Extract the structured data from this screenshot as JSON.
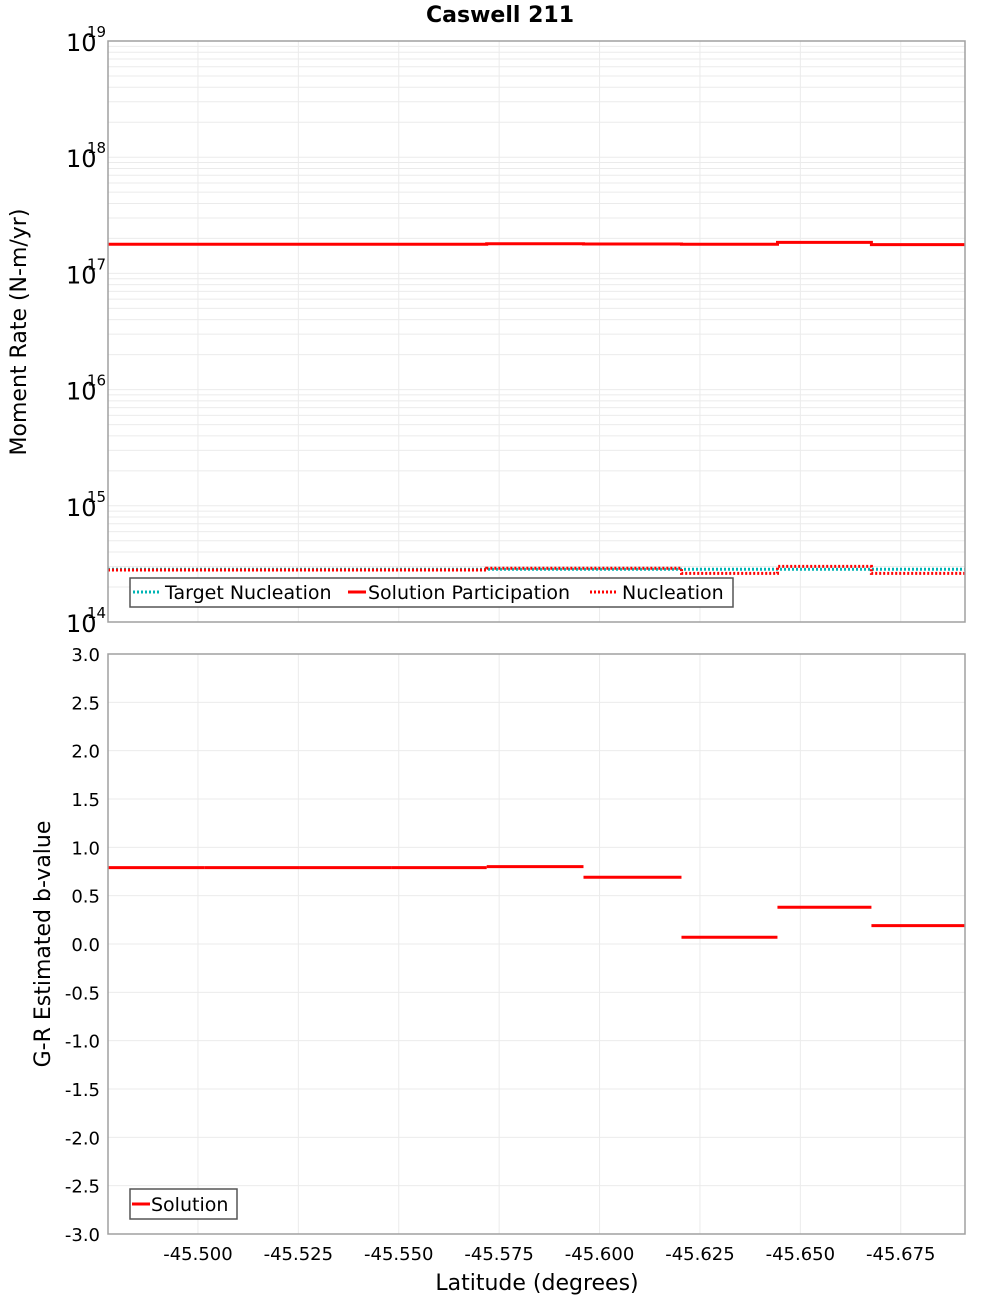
{
  "chart_data": [
    {
      "type": "line",
      "subtype": "step",
      "title": "Caswell 211",
      "xlabel": "Latitude (degrees)",
      "ylabel": "Moment Rate (N-m/yr)",
      "yscale": "log",
      "ylim": [
        100000000000000.0,
        1e+19
      ],
      "xlim": [
        -45.4776,
        -45.691
      ],
      "y_tick_labels": [
        {
          "base": "10",
          "exp": "14"
        },
        {
          "base": "10",
          "exp": "15"
        },
        {
          "base": "10",
          "exp": "16"
        },
        {
          "base": "10",
          "exp": "17"
        },
        {
          "base": "10",
          "exp": "18"
        },
        {
          "base": "10",
          "exp": "19"
        }
      ],
      "grid": true,
      "legend_position": "lower-left",
      "bin_edges": [
        -45.4776,
        -45.5017,
        -45.5254,
        -45.5483,
        -45.5719,
        -45.596,
        -45.6204,
        -45.6443,
        -45.6677,
        -45.691
      ],
      "series": [
        {
          "name": "Target Nucleation",
          "style": "dotted",
          "color": "#00b4b4",
          "values": [
            284000000000000.0,
            284000000000000.0,
            284000000000000.0,
            284000000000000.0,
            284000000000000.0,
            284000000000000.0,
            284000000000000.0,
            284000000000000.0,
            284000000000000.0
          ]
        },
        {
          "name": "Solution Participation",
          "style": "solid",
          "color": "#ff0000",
          "values": [
            1.78e+17,
            1.78e+17,
            1.78e+17,
            1.78e+17,
            1.8e+17,
            1.79e+17,
            1.78e+17,
            1.85e+17,
            1.77e+17
          ]
        },
        {
          "name": "Nucleation",
          "style": "dotted",
          "color": "#ff0000",
          "values": [
            280000000000000.0,
            280000000000000.0,
            280000000000000.0,
            280000000000000.0,
            290000000000000.0,
            290000000000000.0,
            262000000000000.0,
            301000000000000.0,
            262000000000000.0
          ]
        }
      ]
    },
    {
      "type": "line",
      "subtype": "step",
      "title": "",
      "xlabel": "Latitude (degrees)",
      "ylabel": "G-R Estimated b-value",
      "ylim": [
        -3.0,
        3.0
      ],
      "xlim": [
        -45.4776,
        -45.691
      ],
      "y_ticks": [
        "3.0",
        "2.5",
        "2.0",
        "1.5",
        "1.0",
        "0.5",
        "0.0",
        "-0.5",
        "-1.0",
        "-1.5",
        "-2.0",
        "-2.5",
        "-3.0"
      ],
      "x_ticks": [
        "-45.500",
        "-45.525",
        "-45.550",
        "-45.575",
        "-45.600",
        "-45.625",
        "-45.650",
        "-45.675"
      ],
      "grid": true,
      "legend_position": "lower-left",
      "bin_edges": [
        -45.4776,
        -45.5017,
        -45.5254,
        -45.5483,
        -45.5719,
        -45.596,
        -45.6204,
        -45.6443,
        -45.6677,
        -45.691
      ],
      "series": [
        {
          "name": "Solution",
          "style": "solid",
          "color": "#ff0000",
          "values": [
            0.79,
            0.79,
            0.79,
            0.79,
            0.8,
            0.69,
            0.07,
            0.38,
            0.19
          ]
        }
      ]
    }
  ],
  "legend_top": [
    "Target Nucleation",
    "Solution Participation",
    "Nucleation"
  ],
  "legend_bottom": [
    "Solution"
  ],
  "colors": {
    "solution": "#ff0000",
    "target": "#00b4b4",
    "grid": "#ebebeb",
    "frame": "#a0a0a0"
  }
}
